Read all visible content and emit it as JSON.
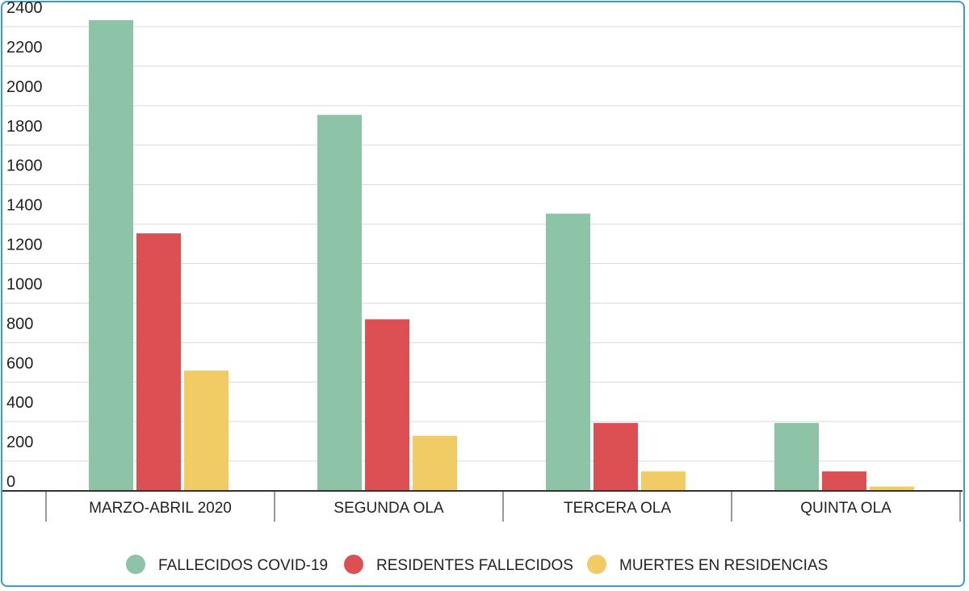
{
  "chart_data": {
    "type": "bar",
    "title": "",
    "xlabel": "",
    "ylabel": "",
    "ylim": [
      0,
      2400
    ],
    "y_ticks": [
      0,
      200,
      400,
      600,
      800,
      1000,
      1200,
      1400,
      1600,
      1800,
      2000,
      2200,
      2400
    ],
    "grid": true,
    "legend_position": "bottom",
    "categories": [
      "MARZO-ABRIL 2020",
      "SEGUNDA OLA",
      "TERCERA OLA",
      "QUINTA OLA"
    ],
    "series": [
      {
        "name": "FALLECIDOS COVID-19",
        "color": "#8dc4a7",
        "values": [
          2380,
          1900,
          1400,
          340
        ]
      },
      {
        "name": "RESIDENTES FALLECIDOS",
        "color": "#dc5053",
        "values": [
          1300,
          865,
          340,
          95
        ]
      },
      {
        "name": "MUERTES EN RESIDENCIAS",
        "color": "#f1cc65",
        "values": [
          605,
          275,
          95,
          18
        ]
      }
    ]
  }
}
